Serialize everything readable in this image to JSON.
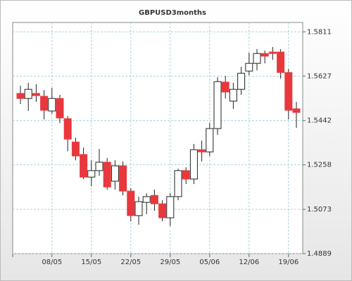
{
  "chart_data": {
    "type": "candlestick",
    "title": "GBPUSD3months",
    "categories": [
      null,
      null,
      null,
      null,
      "08/05",
      null,
      null,
      null,
      null,
      "15/05",
      null,
      null,
      null,
      null,
      "22/05",
      null,
      null,
      null,
      null,
      "29/05",
      null,
      null,
      null,
      null,
      "05/06",
      null,
      null,
      null,
      null,
      "12/06",
      null,
      null,
      null,
      null,
      "19/06",
      null
    ],
    "open": [
      1.5555,
      1.5534,
      1.5555,
      1.5543,
      1.5482,
      1.5534,
      1.545,
      1.5353,
      1.5301,
      1.5207,
      1.5234,
      1.5269,
      1.519,
      1.5254,
      1.5149,
      1.5047,
      1.5102,
      1.5131,
      1.5096,
      1.5038,
      1.5126,
      1.5234,
      1.5199,
      1.5321,
      1.5312,
      1.5409,
      1.5602,
      1.5523,
      1.5572,
      1.5648,
      1.568,
      1.5721,
      1.5727,
      1.5727,
      1.5642,
      1.5491
    ],
    "high": [
      1.5587,
      1.5599,
      1.5593,
      1.5569,
      1.5578,
      1.5549,
      1.5461,
      1.5371,
      1.533,
      1.5277,
      1.5324,
      1.5286,
      1.5277,
      1.5272,
      1.5161,
      1.5126,
      1.514,
      1.5155,
      1.5111,
      1.514,
      1.5242,
      1.5248,
      1.5345,
      1.5359,
      1.5432,
      1.5622,
      1.5628,
      1.5599,
      1.5666,
      1.5724,
      1.5739,
      1.5733,
      1.5748,
      1.5739,
      1.5657,
      1.552
    ],
    "low": [
      1.5511,
      1.5482,
      1.552,
      1.5447,
      1.547,
      1.5432,
      1.5315,
      1.5277,
      1.5199,
      1.5169,
      1.5213,
      1.5155,
      1.5155,
      1.5131,
      1.5023,
      1.5009,
      1.5053,
      1.5067,
      1.5023,
      1.5003,
      1.5111,
      1.5178,
      1.5178,
      1.5272,
      1.5295,
      1.5383,
      1.5534,
      1.5491,
      1.5549,
      1.5631,
      1.5651,
      1.568,
      1.5695,
      1.5616,
      1.5447,
      1.5412
    ],
    "close": [
      1.5534,
      1.5572,
      1.5546,
      1.5485,
      1.5534,
      1.5453,
      1.5365,
      1.5295,
      1.5207,
      1.5234,
      1.5269,
      1.5166,
      1.5254,
      1.5149,
      1.5047,
      1.5105,
      1.5126,
      1.5096,
      1.5038,
      1.5126,
      1.5234,
      1.5199,
      1.5321,
      1.5312,
      1.5409,
      1.5604,
      1.5561,
      1.5572,
      1.5639,
      1.568,
      1.5721,
      1.571,
      1.5721,
      1.5642,
      1.5485,
      1.5476
    ],
    "up_color": "#ffffff",
    "down_color": "#e8383d",
    "ylim": [
      1.4889,
      1.585
    ],
    "yticks": [
      1.4889,
      1.5073,
      1.5258,
      1.5442,
      1.5627,
      1.5811
    ],
    "grid": true
  }
}
